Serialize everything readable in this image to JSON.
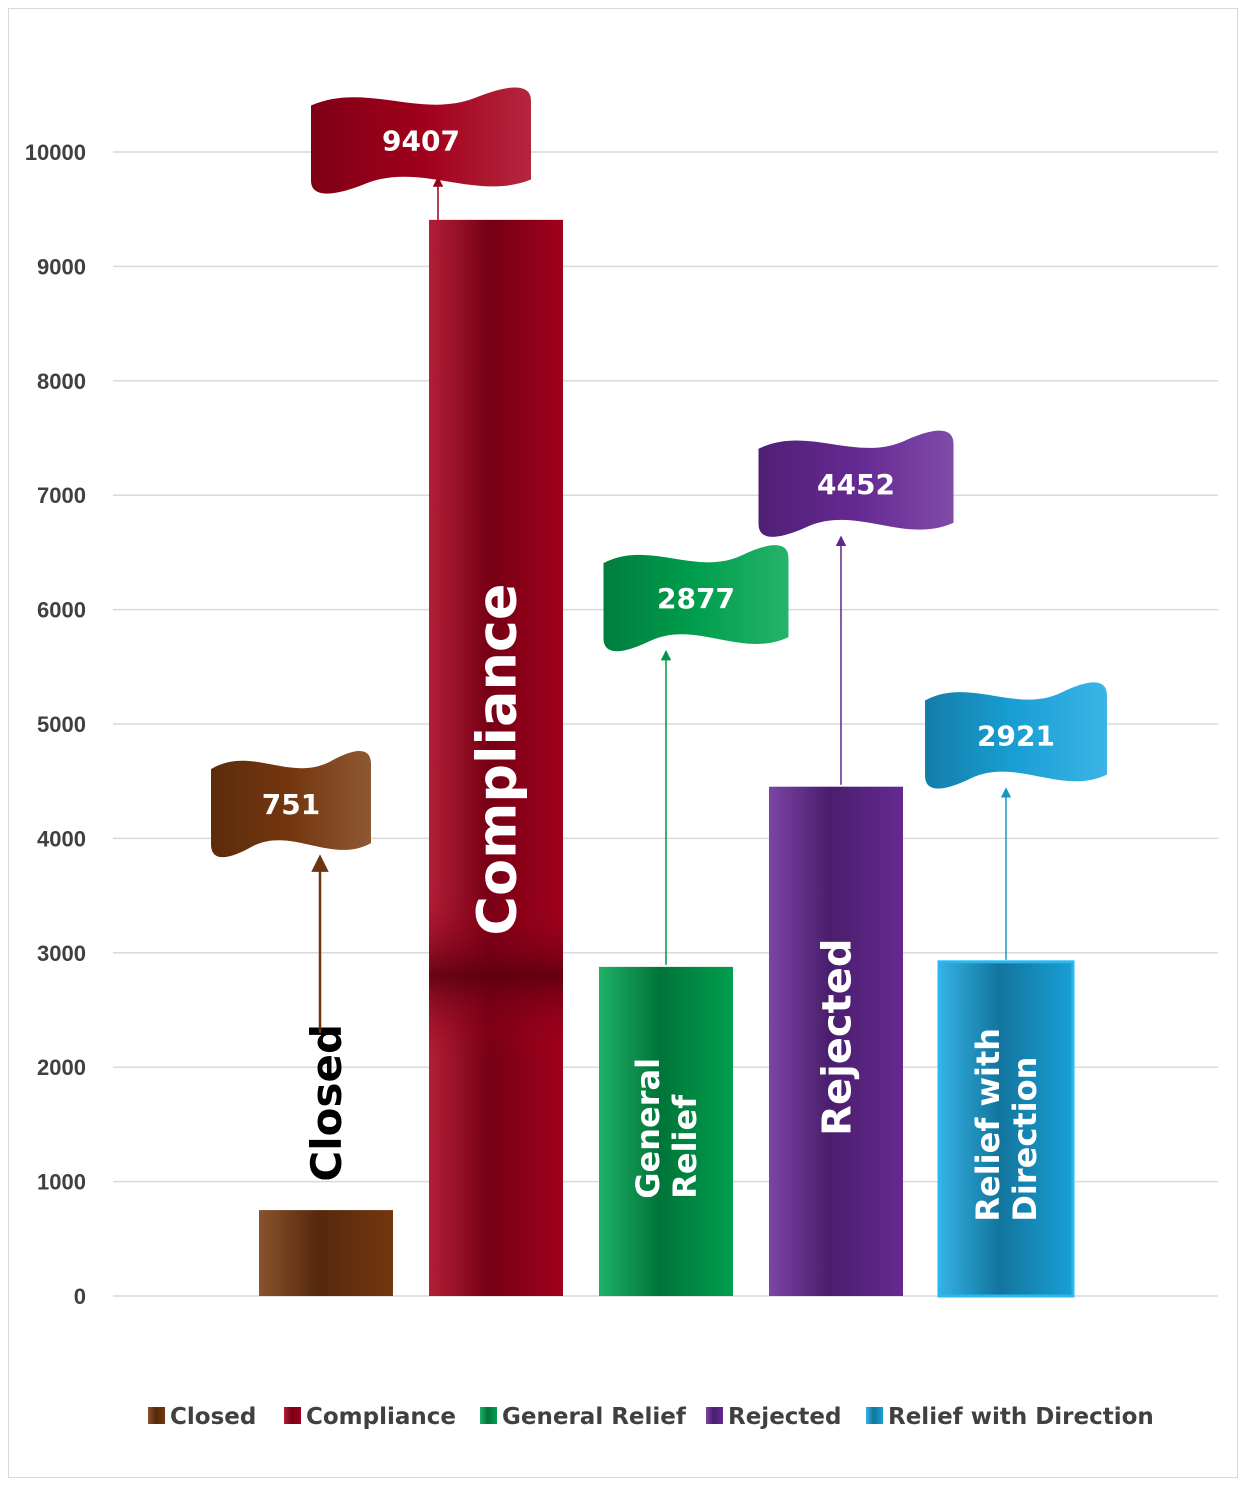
{
  "chart_data": {
    "type": "bar",
    "categories": [
      "Closed",
      "Compliance",
      "General Relief",
      "Rejected",
      "Relief with Direction"
    ],
    "values": [
      751,
      9407,
      2877,
      4452,
      2921
    ],
    "bar_labels": [
      [
        "Closed"
      ],
      [
        "Compliance"
      ],
      [
        "General",
        "Relief"
      ],
      [
        "Rejected"
      ],
      [
        "Relief with",
        "Direction"
      ]
    ],
    "data_labels": [
      "751",
      "9407",
      "2877",
      "4452",
      "2921"
    ],
    "flag_levels": [
      4300,
      10100,
      6100,
      7100,
      4900
    ],
    "colors": [
      "#7a3a10",
      "#a8001c",
      "#00a651",
      "#6a2b9a",
      "#1aa7e0"
    ],
    "legend": [
      "Closed",
      "Compliance",
      "General Relief",
      "Rejected",
      "Relief with Direction"
    ],
    "legend_position": "bottom",
    "ylim": [
      0,
      10000
    ],
    "yticks": [
      0,
      1000,
      2000,
      3000,
      4000,
      5000,
      6000,
      7000,
      8000,
      9000,
      10000
    ],
    "grid": true,
    "title": "",
    "xlabel": "",
    "ylabel": ""
  }
}
